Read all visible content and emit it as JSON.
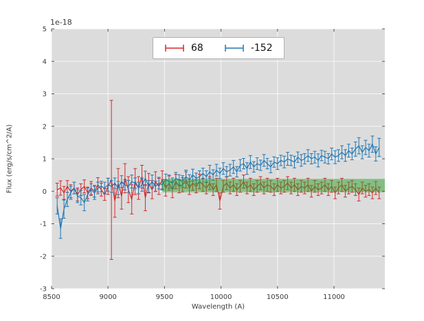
{
  "figure": {
    "offset_text": "1e-18",
    "xlabel": "Wavelength (A)",
    "ylabel": "Flux (erg/s/cm^2/A)",
    "background": "#ffffff",
    "plot_background": "#dcdcdc",
    "grid_color": "#ffffff",
    "tick_color": "#3b3b3b"
  },
  "legend": {
    "entries": [
      {
        "label": "68",
        "color": "#d62728"
      },
      {
        "label": "-152",
        "color": "#1f77b4"
      }
    ]
  },
  "chart_data": {
    "type": "line",
    "title": "",
    "xlabel": "Wavelength (A)",
    "ylabel": "Flux (erg/s/cm^2/A)",
    "offset": "1e-18",
    "xlim": [
      8500,
      11450
    ],
    "ylim": [
      -3,
      5
    ],
    "xticks": [
      8500,
      9000,
      9500,
      10000,
      10500,
      11000
    ],
    "yticks": [
      -3,
      -2,
      -1,
      0,
      1,
      2,
      3,
      4,
      5
    ],
    "grid": true,
    "legend_position": "upper center",
    "x": [
      8550,
      8580,
      8610,
      8640,
      8670,
      8700,
      8730,
      8760,
      8790,
      8820,
      8850,
      8880,
      8910,
      8940,
      8970,
      9000,
      9030,
      9060,
      9090,
      9120,
      9150,
      9180,
      9210,
      9240,
      9270,
      9300,
      9330,
      9360,
      9390,
      9420,
      9450,
      9480,
      9510,
      9540,
      9570,
      9600,
      9630,
      9660,
      9690,
      9720,
      9750,
      9780,
      9810,
      9840,
      9870,
      9900,
      9930,
      9960,
      9990,
      10020,
      10050,
      10080,
      10110,
      10140,
      10170,
      10200,
      10230,
      10260,
      10290,
      10320,
      10350,
      10380,
      10410,
      10440,
      10470,
      10500,
      10530,
      10560,
      10590,
      10620,
      10650,
      10680,
      10710,
      10740,
      10770,
      10800,
      10830,
      10860,
      10890,
      10920,
      10950,
      10980,
      11010,
      11040,
      11070,
      11100,
      11130,
      11160,
      11190,
      11220,
      11250,
      11280,
      11310,
      11340,
      11370,
      11400
    ],
    "series": [
      {
        "name": "68",
        "color": "#d62728",
        "values": [
          0.05,
          0.1,
          -0.05,
          0.15,
          0.0,
          0.1,
          -0.1,
          0.05,
          0.15,
          -0.05,
          0.1,
          0.0,
          0.2,
          0.05,
          -0.1,
          0.15,
          0.35,
          -0.3,
          0.25,
          -0.15,
          0.4,
          0.05,
          -0.25,
          0.3,
          0.1,
          0.45,
          -0.2,
          0.25,
          0.05,
          0.3,
          0.15,
          0.35,
          0.1,
          0.25,
          0.05,
          0.3,
          0.15,
          0.2,
          0.35,
          0.1,
          0.25,
          0.15,
          0.3,
          0.2,
          0.1,
          0.25,
          0.05,
          0.2,
          -0.3,
          0.15,
          0.25,
          0.1,
          0.2,
          0.05,
          0.15,
          0.3,
          0.1,
          0.2,
          0.05,
          0.15,
          0.25,
          0.1,
          0.2,
          0.15,
          0.05,
          0.2,
          0.1,
          0.15,
          0.25,
          0.1,
          0.2,
          0.05,
          0.15,
          0.1,
          0.2,
          0.0,
          0.15,
          0.05,
          0.1,
          0.2,
          0.05,
          0.15,
          -0.05,
          0.1,
          0.2,
          0.0,
          0.1,
          0.15,
          0.05,
          -0.1,
          0.1,
          0.0,
          0.05,
          -0.05,
          0.1,
          -0.05
        ],
        "errors": [
          0.2,
          0.22,
          0.2,
          0.18,
          0.2,
          0.18,
          0.2,
          0.18,
          0.2,
          0.18,
          0.2,
          0.18,
          0.22,
          0.2,
          0.18,
          0.25,
          2.45,
          0.5,
          0.45,
          0.4,
          0.45,
          0.4,
          0.45,
          0.4,
          0.35,
          0.35,
          0.4,
          0.3,
          0.28,
          0.3,
          0.25,
          0.28,
          0.25,
          0.22,
          0.25,
          0.22,
          0.2,
          0.22,
          0.25,
          0.2,
          0.22,
          0.2,
          0.22,
          0.2,
          0.18,
          0.2,
          0.18,
          0.2,
          0.25,
          0.18,
          0.2,
          0.18,
          0.2,
          0.18,
          0.18,
          0.2,
          0.18,
          0.2,
          0.18,
          0.18,
          0.2,
          0.18,
          0.2,
          0.18,
          0.18,
          0.2,
          0.18,
          0.18,
          0.2,
          0.18,
          0.2,
          0.18,
          0.18,
          0.18,
          0.2,
          0.18,
          0.18,
          0.18,
          0.18,
          0.2,
          0.18,
          0.18,
          0.18,
          0.18,
          0.2,
          0.18,
          0.18,
          0.18,
          0.18,
          0.2,
          0.18,
          0.18,
          0.18,
          0.18,
          0.2,
          0.18
        ]
      },
      {
        "name": "-152",
        "color": "#1f77b4",
        "values": [
          -0.45,
          -1.15,
          -0.55,
          -0.25,
          -0.05,
          0.1,
          -0.15,
          -0.2,
          -0.35,
          -0.1,
          0.05,
          -0.05,
          0.1,
          0.15,
          0.1,
          0.2,
          0.15,
          0.25,
          0.1,
          0.3,
          0.2,
          0.15,
          0.3,
          0.25,
          0.1,
          0.2,
          0.4,
          0.15,
          0.3,
          0.15,
          0.25,
          0.2,
          0.35,
          0.3,
          0.25,
          0.4,
          0.35,
          0.3,
          0.45,
          0.35,
          0.5,
          0.4,
          0.45,
          0.55,
          0.45,
          0.6,
          0.5,
          0.65,
          0.55,
          0.7,
          0.6,
          0.65,
          0.75,
          0.6,
          0.8,
          0.85,
          0.7,
          0.9,
          0.75,
          0.85,
          0.8,
          0.95,
          0.85,
          0.75,
          0.9,
          0.85,
          0.95,
          0.9,
          1.0,
          0.95,
          0.9,
          1.05,
          0.95,
          1.0,
          1.1,
          1.0,
          1.05,
          0.95,
          1.1,
          1.05,
          1.0,
          1.15,
          1.05,
          1.1,
          1.2,
          1.1,
          1.25,
          1.15,
          1.3,
          1.4,
          1.2,
          1.35,
          1.25,
          1.45,
          1.15,
          1.35
        ],
        "errors": [
          0.25,
          0.3,
          0.28,
          0.22,
          0.2,
          0.18,
          0.2,
          0.22,
          0.25,
          0.2,
          0.18,
          0.2,
          0.18,
          0.16,
          0.18,
          0.2,
          0.18,
          0.16,
          0.2,
          0.18,
          0.16,
          0.18,
          0.2,
          0.16,
          0.18,
          0.2,
          0.22,
          0.18,
          0.2,
          0.16,
          0.18,
          0.16,
          0.18,
          0.2,
          0.16,
          0.18,
          0.16,
          0.18,
          0.2,
          0.16,
          0.18,
          0.16,
          0.18,
          0.16,
          0.18,
          0.2,
          0.16,
          0.18,
          0.16,
          0.18,
          0.16,
          0.18,
          0.2,
          0.16,
          0.18,
          0.16,
          0.18,
          0.2,
          0.16,
          0.18,
          0.16,
          0.18,
          0.16,
          0.18,
          0.16,
          0.18,
          0.16,
          0.18,
          0.2,
          0.16,
          0.18,
          0.16,
          0.18,
          0.16,
          0.18,
          0.16,
          0.18,
          0.2,
          0.16,
          0.18,
          0.16,
          0.18,
          0.2,
          0.18,
          0.2,
          0.18,
          0.2,
          0.18,
          0.22,
          0.25,
          0.2,
          0.22,
          0.2,
          0.25,
          0.22,
          0.28
        ]
      }
    ],
    "band": {
      "x_start": 9480,
      "x_end": 11450,
      "y_low": -0.03,
      "y_high": 0.38,
      "color": "#2ca02c",
      "alpha": 0.5
    }
  }
}
